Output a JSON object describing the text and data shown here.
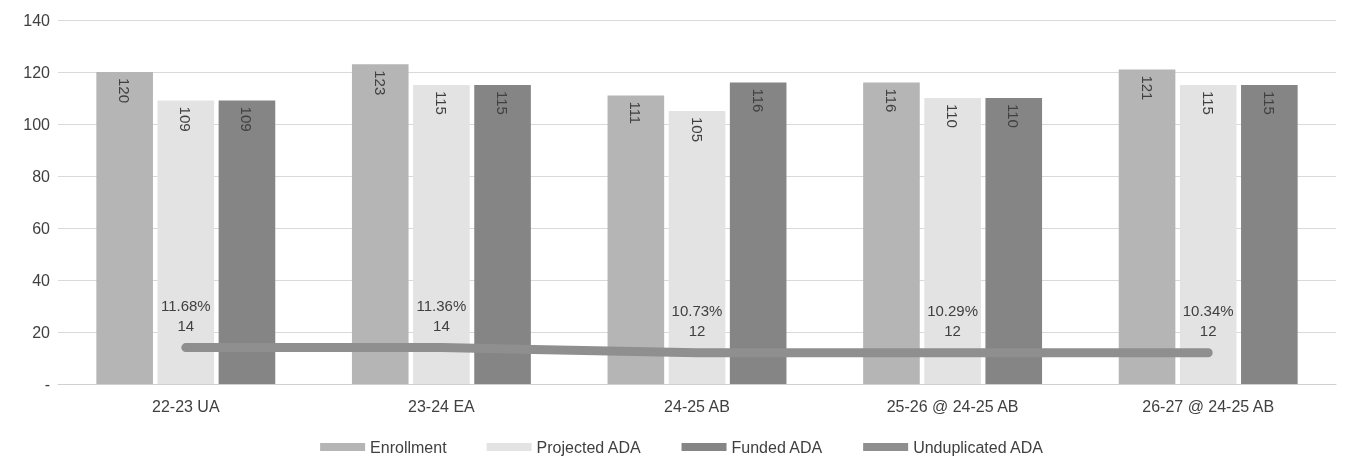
{
  "chart_data": {
    "type": "bar",
    "categories": [
      "22-23 UA",
      "23-24 EA",
      "24-25 AB",
      "25-26 @ 24-25 AB",
      "26-27 @ 24-25 AB"
    ],
    "series": [
      {
        "name": "Enrollment",
        "color": "#b5b5b5",
        "values": [
          120,
          123,
          111,
          116,
          121
        ]
      },
      {
        "name": "Projected ADA",
        "color": "#e3e3e3",
        "values": [
          109,
          115,
          105,
          110,
          115
        ]
      },
      {
        "name": "Funded ADA",
        "color": "#858585",
        "values": [
          109,
          115,
          116,
          110,
          115
        ]
      },
      {
        "name": "Unduplicated ADA",
        "type": "line",
        "color": "#8f8f8f",
        "values": [
          14,
          14,
          12,
          12,
          12
        ],
        "value_labels": [
          "11.68%\n14",
          "11.36%\n14",
          "10.73%\n12",
          "10.29%\n12",
          "10.34%\n12"
        ]
      }
    ],
    "ylim": [
      0,
      140
    ],
    "yticks": [
      {
        "value": 0,
        "label": "-"
      },
      20,
      40,
      60,
      80,
      100,
      120,
      140
    ],
    "grid": "y",
    "legend": "bottom",
    "data_labels": true,
    "marker": "none"
  }
}
